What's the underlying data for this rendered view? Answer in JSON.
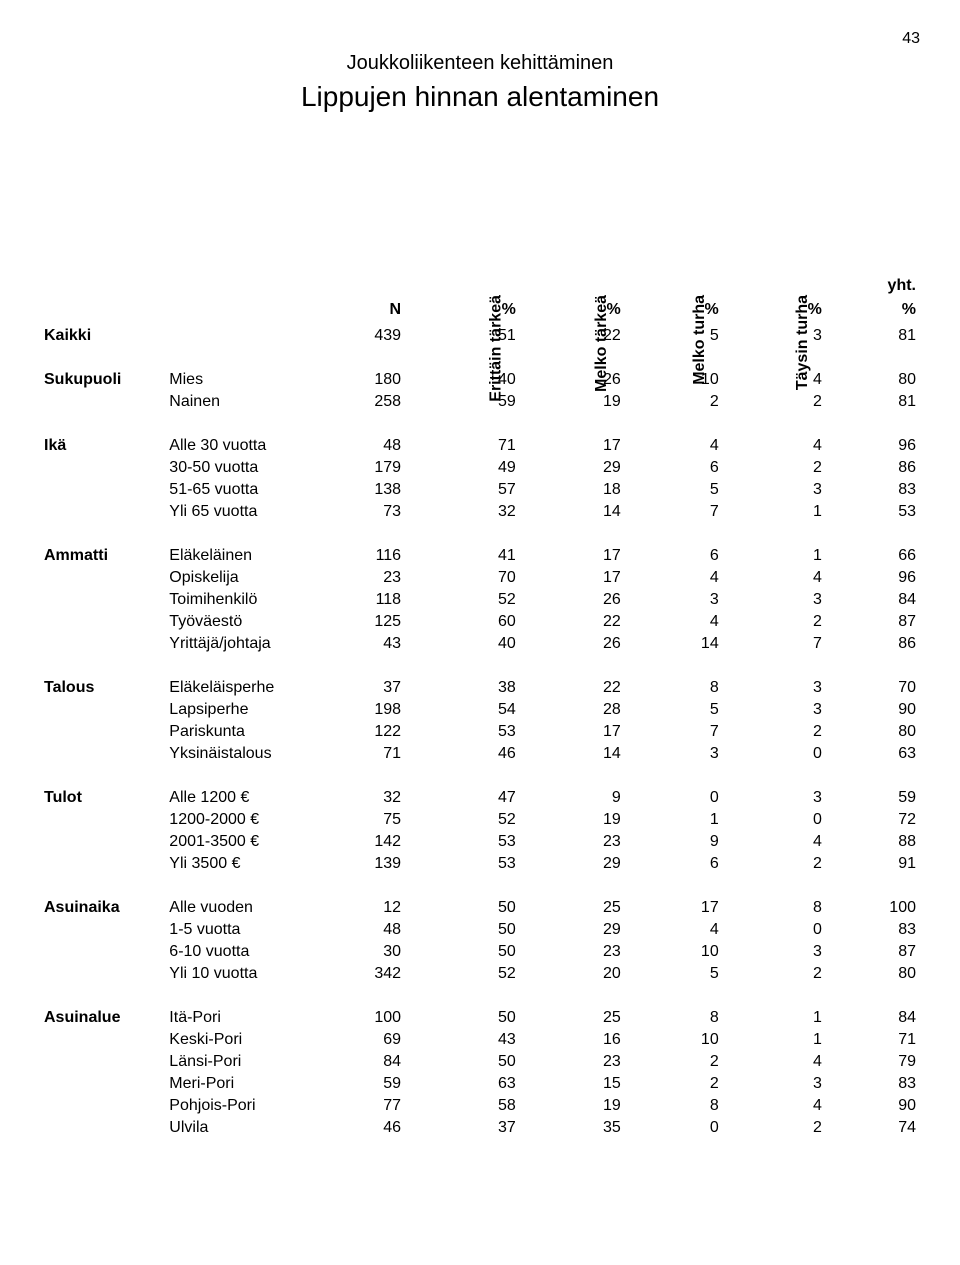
{
  "page_number": "43",
  "super_title": "Joukkoliikenteen kehittäminen",
  "main_title": "Lippujen hinnan alentaminen",
  "headers": {
    "c1": "Erittäin tärkeä",
    "c2": "Melko tärkeä",
    "c3": "Melko turha",
    "c4": "Täysin turha",
    "c5": "yht.",
    "n_label": "N",
    "pct": "%"
  },
  "kaikki": {
    "label": "Kaikki",
    "n": "439",
    "v": [
      "51",
      "22",
      "5",
      "3",
      "81"
    ]
  },
  "groups": [
    {
      "name": "Sukupuoli",
      "rows": [
        {
          "label": "Mies",
          "n": "180",
          "v": [
            "40",
            "26",
            "10",
            "4",
            "80"
          ]
        },
        {
          "label": "Nainen",
          "n": "258",
          "v": [
            "59",
            "19",
            "2",
            "2",
            "81"
          ]
        }
      ]
    },
    {
      "name": "Ikä",
      "rows": [
        {
          "label": "Alle 30 vuotta",
          "n": "48",
          "v": [
            "71",
            "17",
            "4",
            "4",
            "96"
          ]
        },
        {
          "label": "30-50 vuotta",
          "n": "179",
          "v": [
            "49",
            "29",
            "6",
            "2",
            "86"
          ]
        },
        {
          "label": "51-65 vuotta",
          "n": "138",
          "v": [
            "57",
            "18",
            "5",
            "3",
            "83"
          ]
        },
        {
          "label": "Yli 65 vuotta",
          "n": "73",
          "v": [
            "32",
            "14",
            "7",
            "1",
            "53"
          ]
        }
      ]
    },
    {
      "name": "Ammatti",
      "rows": [
        {
          "label": "Eläkeläinen",
          "n": "116",
          "v": [
            "41",
            "17",
            "6",
            "1",
            "66"
          ]
        },
        {
          "label": "Opiskelija",
          "n": "23",
          "v": [
            "70",
            "17",
            "4",
            "4",
            "96"
          ]
        },
        {
          "label": "Toimihenkilö",
          "n": "118",
          "v": [
            "52",
            "26",
            "3",
            "3",
            "84"
          ]
        },
        {
          "label": "Työväestö",
          "n": "125",
          "v": [
            "60",
            "22",
            "4",
            "2",
            "87"
          ]
        },
        {
          "label": "Yrittäjä/johtaja",
          "n": "43",
          "v": [
            "40",
            "26",
            "14",
            "7",
            "86"
          ]
        }
      ]
    },
    {
      "name": "Talous",
      "rows": [
        {
          "label": "Eläkeläisperhe",
          "n": "37",
          "v": [
            "38",
            "22",
            "8",
            "3",
            "70"
          ]
        },
        {
          "label": "Lapsiperhe",
          "n": "198",
          "v": [
            "54",
            "28",
            "5",
            "3",
            "90"
          ]
        },
        {
          "label": "Pariskunta",
          "n": "122",
          "v": [
            "53",
            "17",
            "7",
            "2",
            "80"
          ]
        },
        {
          "label": "Yksinäistalous",
          "n": "71",
          "v": [
            "46",
            "14",
            "3",
            "0",
            "63"
          ]
        }
      ]
    },
    {
      "name": "Tulot",
      "rows": [
        {
          "label": "Alle 1200 €",
          "n": "32",
          "v": [
            "47",
            "9",
            "0",
            "3",
            "59"
          ]
        },
        {
          "label": "1200-2000 €",
          "n": "75",
          "v": [
            "52",
            "19",
            "1",
            "0",
            "72"
          ]
        },
        {
          "label": "2001-3500 €",
          "n": "142",
          "v": [
            "53",
            "23",
            "9",
            "4",
            "88"
          ]
        },
        {
          "label": "Yli 3500 €",
          "n": "139",
          "v": [
            "53",
            "29",
            "6",
            "2",
            "91"
          ]
        }
      ]
    },
    {
      "name": "Asuinaika",
      "rows": [
        {
          "label": "Alle vuoden",
          "n": "12",
          "v": [
            "50",
            "25",
            "17",
            "8",
            "100"
          ]
        },
        {
          "label": "1-5 vuotta",
          "n": "48",
          "v": [
            "50",
            "29",
            "4",
            "0",
            "83"
          ]
        },
        {
          "label": "6-10 vuotta",
          "n": "30",
          "v": [
            "50",
            "23",
            "10",
            "3",
            "87"
          ]
        },
        {
          "label": "Yli 10 vuotta",
          "n": "342",
          "v": [
            "52",
            "20",
            "5",
            "2",
            "80"
          ]
        }
      ]
    },
    {
      "name": "Asuinalue",
      "rows": [
        {
          "label": "Itä-Pori",
          "n": "100",
          "v": [
            "50",
            "25",
            "8",
            "1",
            "84"
          ]
        },
        {
          "label": "Keski-Pori",
          "n": "69",
          "v": [
            "43",
            "16",
            "10",
            "1",
            "71"
          ]
        },
        {
          "label": "Länsi-Pori",
          "n": "84",
          "v": [
            "50",
            "23",
            "2",
            "4",
            "79"
          ]
        },
        {
          "label": "Meri-Pori",
          "n": "59",
          "v": [
            "63",
            "15",
            "2",
            "3",
            "83"
          ]
        },
        {
          "label": "Pohjois-Pori",
          "n": "77",
          "v": [
            "58",
            "19",
            "8",
            "4",
            "90"
          ]
        },
        {
          "label": "Ulvila",
          "n": "46",
          "v": [
            "37",
            "35",
            "0",
            "2",
            "74"
          ]
        }
      ]
    }
  ]
}
